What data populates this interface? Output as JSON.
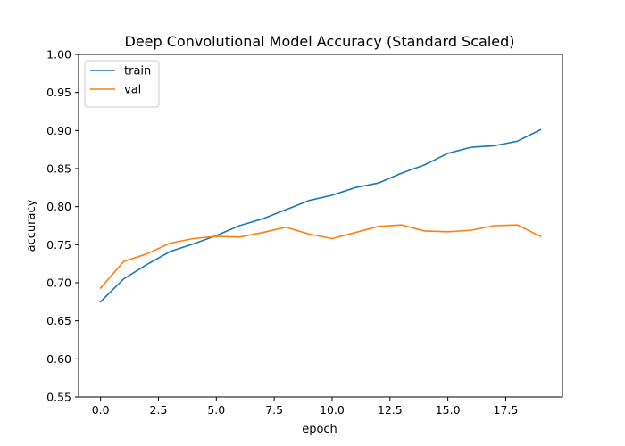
{
  "chart_data": {
    "type": "line",
    "title": "Deep Convolutional Model Accuracy (Standard Scaled)",
    "xlabel": "epoch",
    "ylabel": "accuracy",
    "xlim": [
      -0.95,
      19.95
    ],
    "ylim": [
      0.55,
      1.0
    ],
    "xticks": [
      0.0,
      2.5,
      5.0,
      7.5,
      10.0,
      12.5,
      15.0,
      17.5
    ],
    "xtick_labels": [
      "0.0",
      "2.5",
      "5.0",
      "7.5",
      "10.0",
      "12.5",
      "15.0",
      "17.5"
    ],
    "yticks": [
      0.55,
      0.6,
      0.65,
      0.7,
      0.75,
      0.8,
      0.85,
      0.9,
      0.95,
      1.0
    ],
    "ytick_labels": [
      "0.55",
      "0.60",
      "0.65",
      "0.70",
      "0.75",
      "0.80",
      "0.85",
      "0.90",
      "0.95",
      "1.00"
    ],
    "grid": false,
    "legend_position": "top-left",
    "x": [
      0,
      1,
      2,
      3,
      4,
      5,
      6,
      7,
      8,
      9,
      10,
      11,
      12,
      13,
      14,
      15,
      16,
      17,
      18,
      19
    ],
    "series": [
      {
        "name": "train",
        "color": "#1f77b4",
        "values": [
          0.675,
          0.705,
          0.724,
          0.741,
          0.751,
          0.762,
          0.775,
          0.784,
          0.796,
          0.808,
          0.815,
          0.825,
          0.831,
          0.844,
          0.855,
          0.87,
          0.878,
          0.88,
          0.886,
          0.901
        ]
      },
      {
        "name": "val",
        "color": "#ff7f0e",
        "values": [
          0.693,
          0.728,
          0.738,
          0.752,
          0.758,
          0.761,
          0.76,
          0.766,
          0.773,
          0.764,
          0.758,
          0.766,
          0.774,
          0.776,
          0.768,
          0.767,
          0.769,
          0.775,
          0.776,
          0.761
        ]
      }
    ]
  }
}
